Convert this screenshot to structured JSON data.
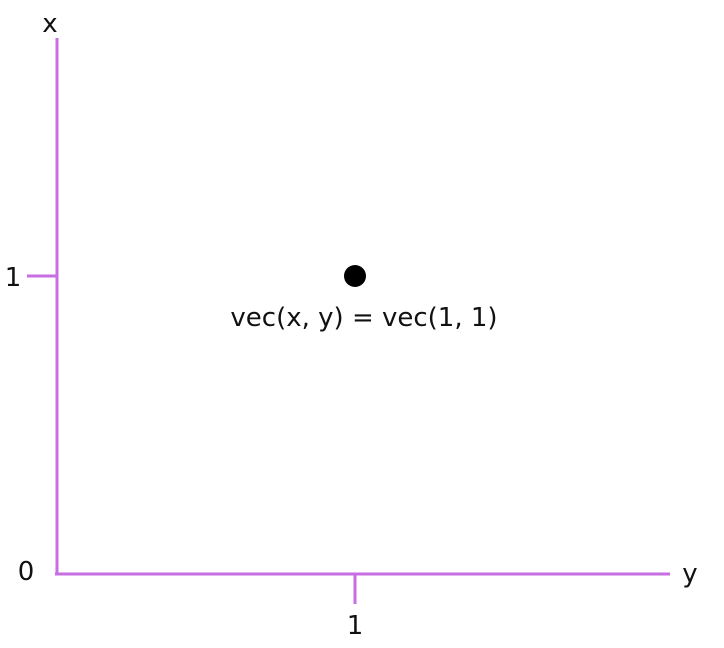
{
  "axes": {
    "vertical_label": "x",
    "horizontal_label": "y",
    "origin_label": "0",
    "vertical_tick_label": "1",
    "horizontal_tick_label": "1",
    "color": "#c86ee3"
  },
  "point": {
    "x": 1,
    "y": 1,
    "label": "vec(x, y) = vec(1, 1)",
    "color": "#000000"
  }
}
